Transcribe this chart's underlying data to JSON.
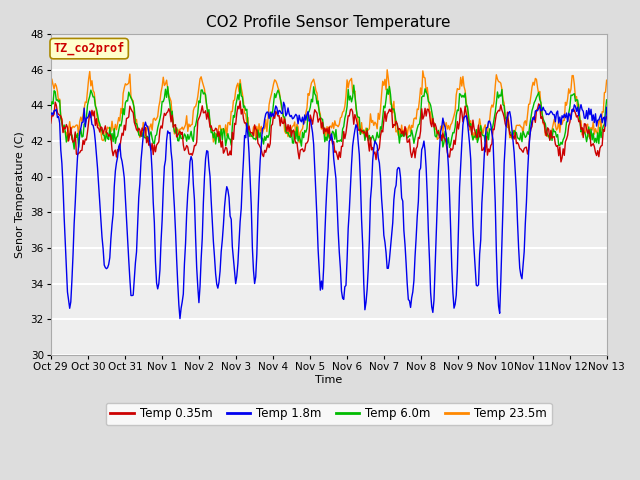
{
  "title": "CO2 Profile Sensor Temperature",
  "ylabel": "Senor Temperature (C)",
  "xlabel": "Time",
  "ylim": [
    30,
    48
  ],
  "yticks": [
    30,
    32,
    34,
    36,
    38,
    40,
    42,
    44,
    46,
    48
  ],
  "x_tick_labels": [
    "Oct 29",
    "Oct 30",
    "Oct 31",
    "Nov 1",
    "Nov 2",
    "Nov 3",
    "Nov 4",
    "Nov 5",
    "Nov 6",
    "Nov 7",
    "Nov 8",
    "Nov 9",
    "Nov 10",
    "Nov 11",
    "Nov 12",
    "Nov 13"
  ],
  "colors": {
    "Temp 0.35m": "#cc0000",
    "Temp 1.8m": "#0000ee",
    "Temp 6.0m": "#00bb00",
    "Temp 23.5m": "#ff8800"
  },
  "legend_label_box_facecolor": "#ffffcc",
  "legend_label_text_color": "#cc0000",
  "legend_label_text": "TZ_co2prof",
  "bg_color": "#dddddd",
  "plot_bg_color": "#eeeeee",
  "grid_color": "#ffffff",
  "linewidth": 1.0,
  "title_fontsize": 11,
  "axis_fontsize": 8,
  "tick_fontsize": 7.5,
  "legend_fontsize": 8.5,
  "num_points": 500
}
